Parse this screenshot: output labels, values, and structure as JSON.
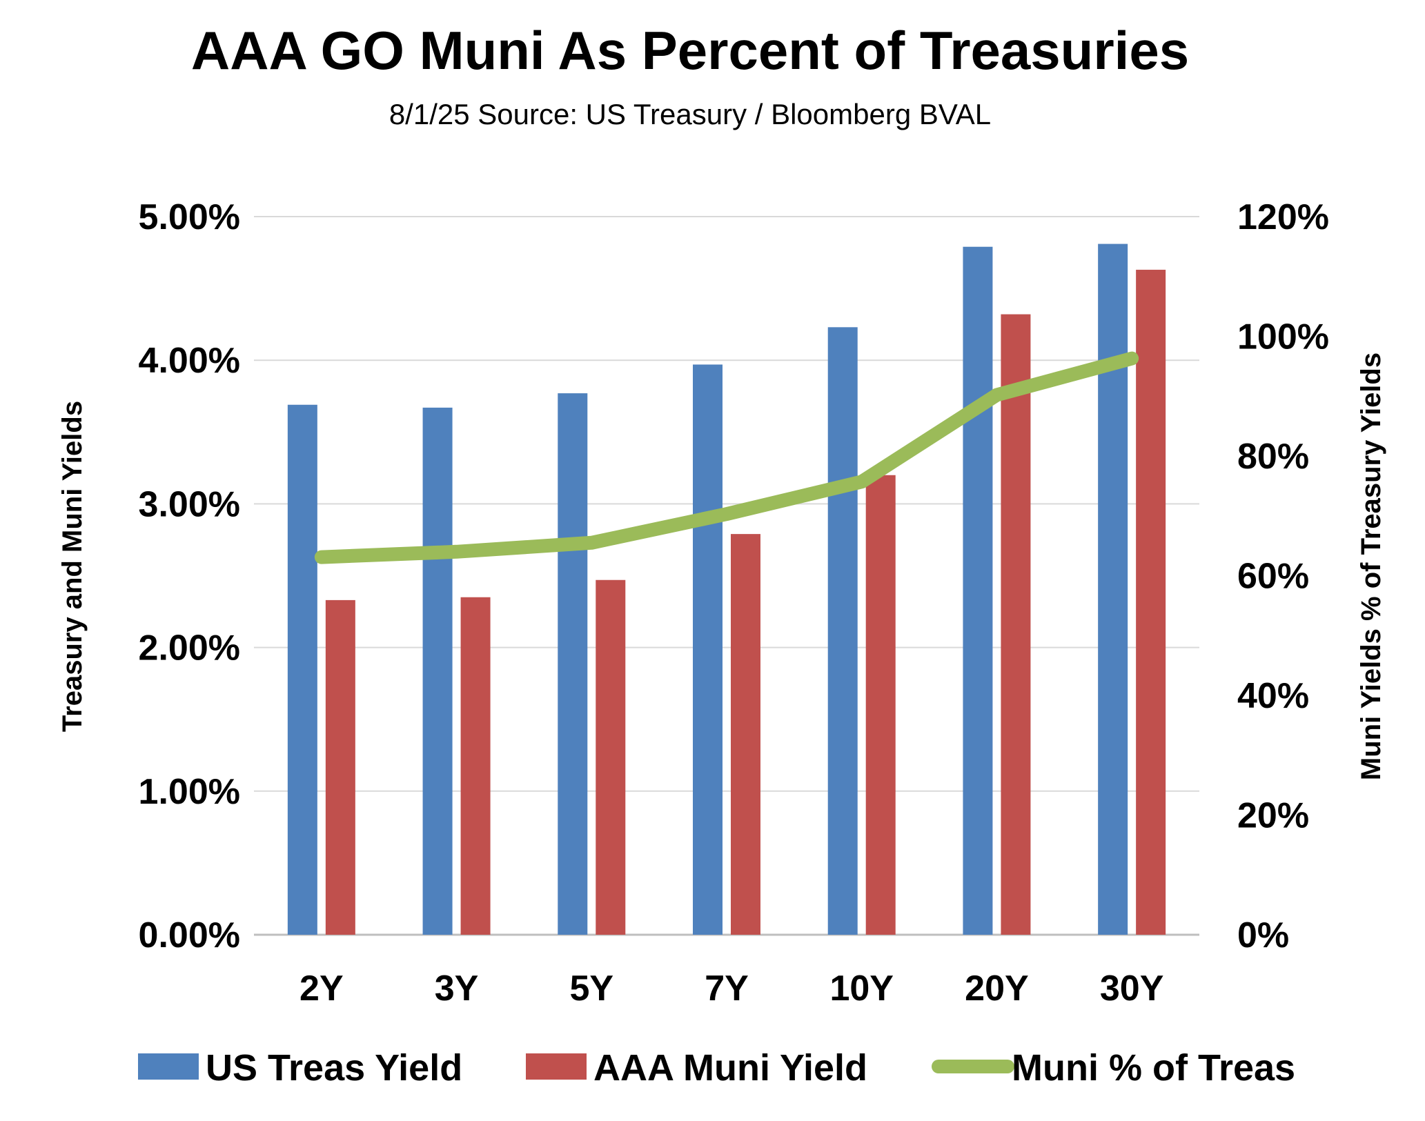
{
  "chart_data": {
    "type": "bar",
    "title": "AAA GO Muni As Percent of Treasuries",
    "subtitle": "8/1/25  Source: US Treasury / Bloomberg BVAL",
    "categories": [
      "2Y",
      "3Y",
      "5Y",
      "7Y",
      "10Y",
      "20Y",
      "30Y"
    ],
    "series": [
      {
        "name": "US Treas Yield",
        "axis": "left",
        "kind": "bar",
        "color": "#4F81BD",
        "values": [
          3.69,
          3.67,
          3.77,
          3.97,
          4.23,
          4.79,
          4.81
        ]
      },
      {
        "name": "AAA Muni Yield",
        "axis": "left",
        "kind": "bar",
        "color": "#C0504D",
        "values": [
          2.33,
          2.35,
          2.47,
          2.79,
          3.2,
          4.32,
          4.63
        ]
      },
      {
        "name": "Muni % of Treas",
        "axis": "right",
        "kind": "line",
        "color": "#9BBB59",
        "values": [
          63.1,
          64.0,
          65.5,
          70.3,
          75.7,
          90.2,
          96.3
        ]
      }
    ],
    "y_left": {
      "label": "Treasury and Muni Yields",
      "ylim": [
        0,
        5
      ],
      "ticks": [
        0,
        1,
        2,
        3,
        4,
        5
      ],
      "tick_labels": [
        "0.00%",
        "1.00%",
        "2.00%",
        "3.00%",
        "4.00%",
        "5.00%"
      ]
    },
    "y_right": {
      "label": "Muni Yields % of Treasury Yields",
      "ylim": [
        0,
        120
      ],
      "ticks": [
        0,
        20,
        40,
        60,
        80,
        100,
        120
      ],
      "tick_labels": [
        "0%",
        "20%",
        "40%",
        "60%",
        "80%",
        "100%",
        "120%"
      ]
    },
    "grid": true,
    "legend": "bottom"
  }
}
